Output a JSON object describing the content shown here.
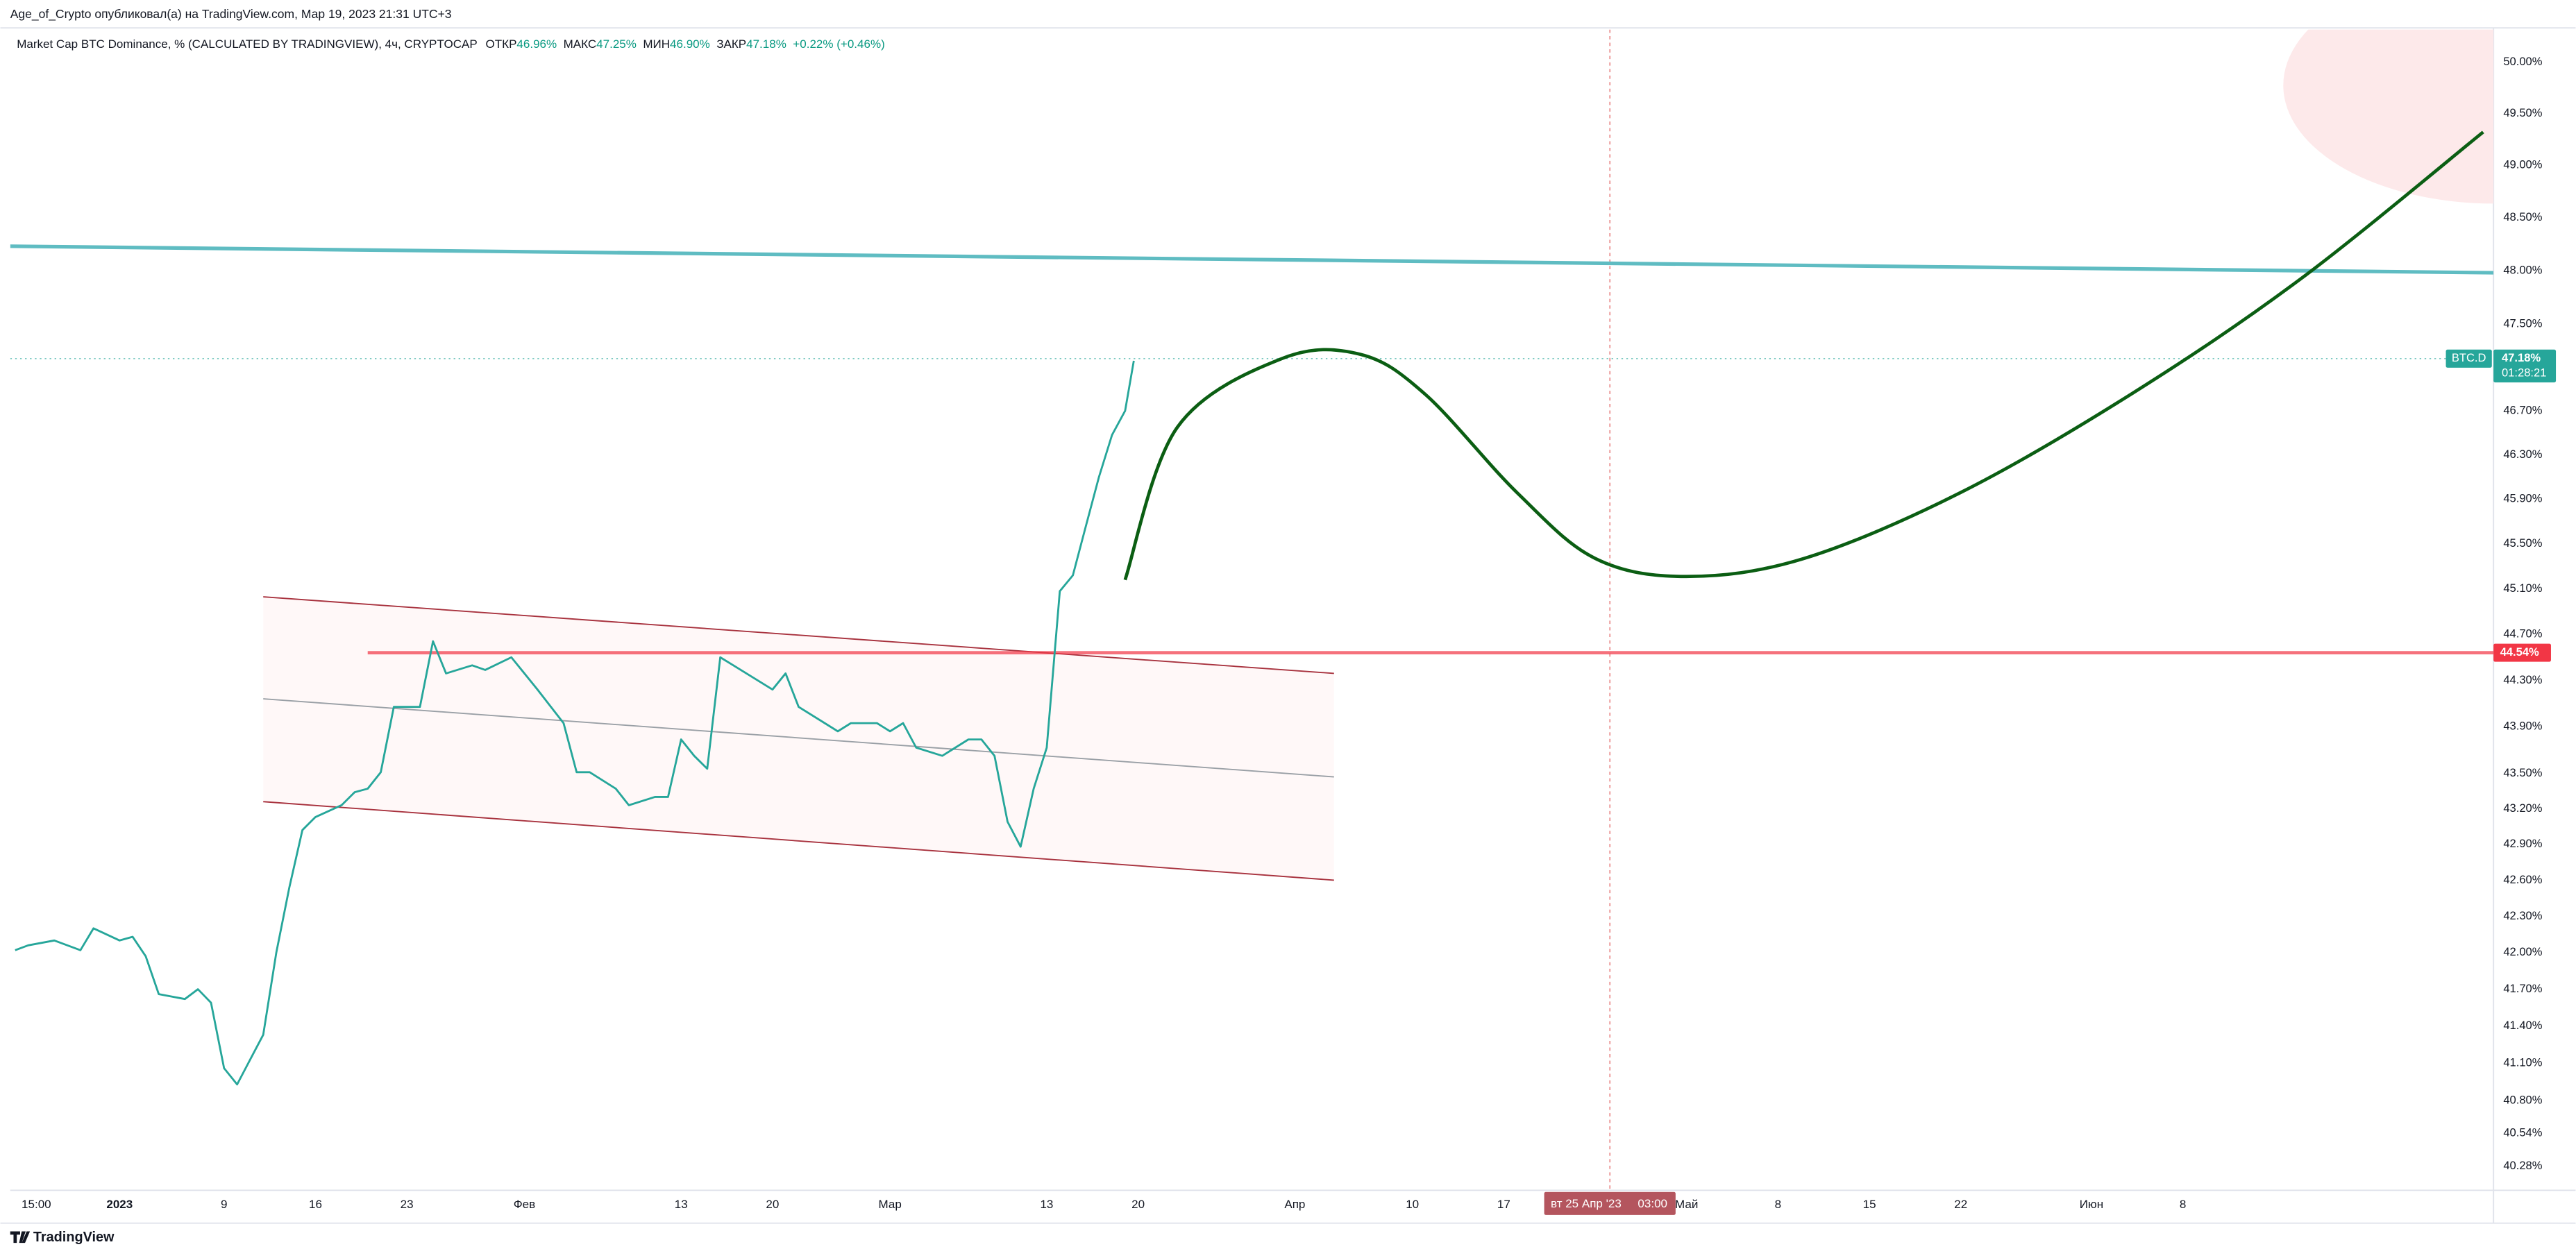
{
  "publisher": "Age_of_Crypto опубликовал(а) на TradingView.com, Мар 19, 2023 21:31 UTC+3",
  "footer": "TradingView",
  "chart_data": {
    "type": "line",
    "title": "Market Cap BTC Dominance, % (CALCULATED BY TRADINGVIEW), 4ч, CRYPTOCAP",
    "legend_items": [
      {
        "label": "ОТКР",
        "value": "46.96%"
      },
      {
        "label": "МАКС",
        "value": "47.25%"
      },
      {
        "label": "МИН",
        "value": "46.90%"
      },
      {
        "label": "ЗАКР",
        "value": "47.18%"
      }
    ],
    "change": "+0.22% (+0.46%)",
    "x": [
      "2022-12-24",
      "2022-12-25",
      "2022-12-27",
      "2022-12-29",
      "2022-12-30",
      "2023-01-01",
      "2023-01-02",
      "2023-01-03",
      "2023-01-04",
      "2023-01-06",
      "2023-01-07",
      "2023-01-08",
      "2023-01-09",
      "2023-01-10",
      "2023-01-11",
      "2023-01-12",
      "2023-01-13",
      "2023-01-14",
      "2023-01-15",
      "2023-01-16",
      "2023-01-18",
      "2023-01-19",
      "2023-01-20",
      "2023-01-21",
      "2023-01-22",
      "2023-01-23",
      "2023-01-24",
      "2023-01-25",
      "2023-01-26",
      "2023-01-28",
      "2023-01-29",
      "2023-01-31",
      "2023-02-01",
      "2023-02-02",
      "2023-02-04",
      "2023-02-05",
      "2023-02-06",
      "2023-02-08",
      "2023-02-09",
      "2023-02-11",
      "2023-02-12",
      "2023-02-13",
      "2023-02-14",
      "2023-02-15",
      "2023-02-16",
      "2023-02-17",
      "2023-02-18",
      "2023-02-20",
      "2023-02-21",
      "2023-02-22",
      "2023-02-24",
      "2023-02-25",
      "2023-02-26",
      "2023-02-28",
      "2023-03-01",
      "2023-03-02",
      "2023-03-03",
      "2023-03-05",
      "2023-03-06",
      "2023-03-07",
      "2023-03-08",
      "2023-03-09",
      "2023-03-10",
      "2023-03-11",
      "2023-03-12",
      "2023-03-13",
      "2023-03-14",
      "2023-03-15",
      "2023-03-16",
      "2023-03-17",
      "2023-03-18",
      "2023-03-19",
      "2023-03-19T16:00"
    ],
    "series": [
      {
        "name": "BTC.D",
        "color": "#26a69a",
        "values": [
          42.02,
          42.06,
          42.1,
          42.02,
          42.2,
          42.1,
          42.13,
          41.97,
          41.66,
          41.62,
          41.7,
          41.59,
          41.06,
          40.93,
          41.13,
          41.33,
          42.0,
          42.54,
          43.02,
          43.13,
          43.23,
          43.34,
          43.37,
          43.51,
          44.07,
          44.07,
          44.07,
          44.64,
          44.36,
          44.43,
          44.39,
          44.5,
          44.36,
          44.22,
          43.93,
          43.51,
          43.51,
          43.37,
          43.23,
          43.3,
          43.3,
          43.79,
          43.65,
          43.54,
          44.5,
          44.43,
          44.36,
          44.22,
          44.36,
          44.07,
          43.93,
          43.86,
          43.93,
          43.93,
          43.86,
          43.93,
          43.72,
          43.65,
          43.72,
          43.79,
          43.79,
          43.65,
          43.09,
          42.88,
          43.37,
          43.72,
          45.08,
          45.22,
          45.66,
          46.1,
          46.48,
          46.7,
          47.16
        ]
      }
    ],
    "xlim": [
      "2022-12-23T15:00",
      "2023-07-01T19:00"
    ],
    "ylim": [
      40.09,
      50.32
    ],
    "log": true,
    "grid": false,
    "xticks": [
      {
        "value": "2022-12-25T15:00",
        "label": "15:00"
      },
      {
        "value": "2023-01-01",
        "label": "2023"
      },
      {
        "value": "2023-01-09",
        "label": "9"
      },
      {
        "value": "2023-01-16",
        "label": "16"
      },
      {
        "value": "2023-01-23",
        "label": "23"
      },
      {
        "value": "2023-02-01",
        "label": "Фев"
      },
      {
        "value": "2023-02-13",
        "label": "13"
      },
      {
        "value": "2023-02-20",
        "label": "20"
      },
      {
        "value": "2023-03-01",
        "label": "Мар"
      },
      {
        "value": "2023-03-13",
        "label": "13"
      },
      {
        "value": "2023-03-20",
        "label": "20"
      },
      {
        "value": "2023-04-01",
        "label": "Апр"
      },
      {
        "value": "2023-04-10",
        "label": "10"
      },
      {
        "value": "2023-04-17",
        "label": "17"
      },
      {
        "value": "2023-05-01",
        "label": "Май"
      },
      {
        "value": "2023-05-08",
        "label": "8"
      },
      {
        "value": "2023-05-15",
        "label": "15"
      },
      {
        "value": "2023-05-22",
        "label": "22"
      },
      {
        "value": "2023-06-01",
        "label": "Июн"
      },
      {
        "value": "2023-06-08",
        "label": "8"
      }
    ],
    "yticks": [
      {
        "value": 50.0,
        "label": "50.00%"
      },
      {
        "value": 49.5,
        "label": "49.50%"
      },
      {
        "value": 49.0,
        "label": "49.00%"
      },
      {
        "value": 48.5,
        "label": "48.50%"
      },
      {
        "value": 48.0,
        "label": "48.00%"
      },
      {
        "value": 47.5,
        "label": "47.50%"
      },
      {
        "value": 46.7,
        "label": "46.70%"
      },
      {
        "value": 46.3,
        "label": "46.30%"
      },
      {
        "value": 45.9,
        "label": "45.90%"
      },
      {
        "value": 45.5,
        "label": "45.50%"
      },
      {
        "value": 45.1,
        "label": "45.10%"
      },
      {
        "value": 44.7,
        "label": "44.70%"
      },
      {
        "value": 44.3,
        "label": "44.30%"
      },
      {
        "value": 43.9,
        "label": "43.90%"
      },
      {
        "value": 43.5,
        "label": "43.50%"
      },
      {
        "value": 43.2,
        "label": "43.20%"
      },
      {
        "value": 42.9,
        "label": "42.90%"
      },
      {
        "value": 42.6,
        "label": "42.60%"
      },
      {
        "value": 42.3,
        "label": "42.30%"
      },
      {
        "value": 42.0,
        "label": "42.00%"
      },
      {
        "value": 41.7,
        "label": "41.70%"
      },
      {
        "value": 41.4,
        "label": "41.40%"
      },
      {
        "value": 41.1,
        "label": "41.10%"
      },
      {
        "value": 40.8,
        "label": "40.80%"
      },
      {
        "value": 40.54,
        "label": "40.54%"
      },
      {
        "value": 40.28,
        "label": "40.28%"
      }
    ],
    "last_price": {
      "value": 47.18,
      "label": "47.18%",
      "countdown": "01:28:21",
      "color": "#26a69a"
    },
    "hline": {
      "value": 44.54,
      "label": "44.54%",
      "start": "2023-01-20",
      "color": "#f23645"
    },
    "trend_line": {
      "x": [
        "2022-12-23T15:00",
        "2023-07-01T19:00"
      ],
      "values": [
        48.23,
        47.98
      ],
      "color": "#5fbcc2"
    },
    "channel": {
      "x": [
        "2023-01-12",
        "2023-04-04"
      ],
      "upper": [
        45.03,
        44.36
      ],
      "middle": [
        44.14,
        43.47
      ],
      "lower": [
        43.26,
        42.6
      ],
      "color": "#a8323e"
    },
    "forecast": {
      "x": [
        "2023-03-19",
        "2023-03-23",
        "2023-03-31",
        "2023-04-06",
        "2023-04-11",
        "2023-04-18",
        "2023-04-24",
        "2023-05-01",
        "2023-05-10",
        "2023-05-22",
        "2023-06-04",
        "2023-06-17",
        "2023-07-01"
      ],
      "values": [
        45.18,
        46.55,
        47.18,
        47.22,
        46.85,
        45.96,
        45.37,
        45.21,
        45.37,
        45.96,
        46.85,
        47.92,
        49.32
      ],
      "color": "#0b5e13"
    },
    "crosshair": {
      "x": "2023-04-25T03:00",
      "date_label": "вт 25 Апр '23",
      "time_label": "03:00"
    }
  }
}
